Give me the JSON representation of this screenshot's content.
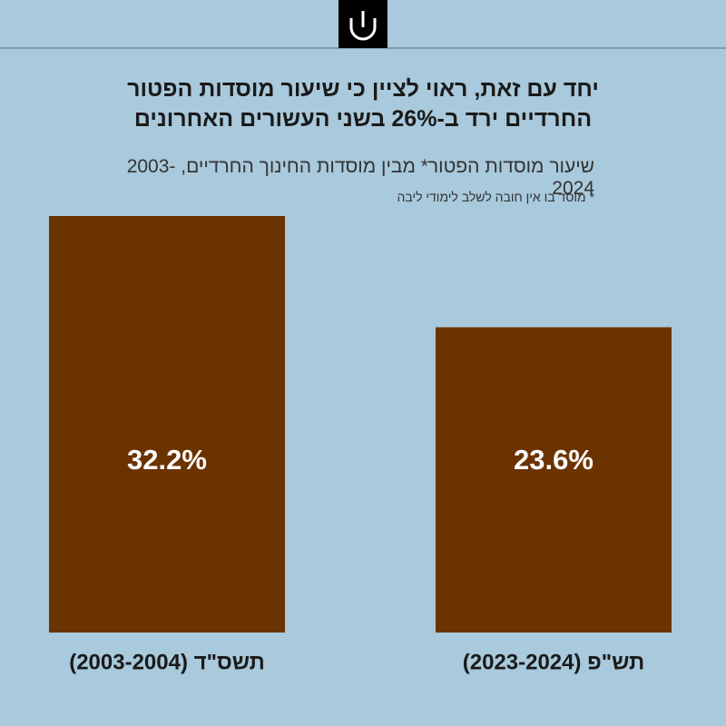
{
  "chart_data": {
    "type": "bar",
    "title": "יחד עם זאת, ראוי לציין כי שיעור מוסדות הפטור החרדיים ירד ב-26% בשני העשורים האחרונים",
    "subtitle": "שיעור מוסדות הפטור* מבין מוסדות החינוך החרדיים, 2003-2024",
    "note": "* מוסד בו אין חובה לשלב לימודי ליבה",
    "categories": [
      "תשס\"ד (2003-2004)",
      "תש\"פ (2023-2024)"
    ],
    "values": [
      32.2,
      23.6
    ],
    "value_labels": [
      "32.2%",
      "23.6%"
    ],
    "color": "#6b3300"
  }
}
